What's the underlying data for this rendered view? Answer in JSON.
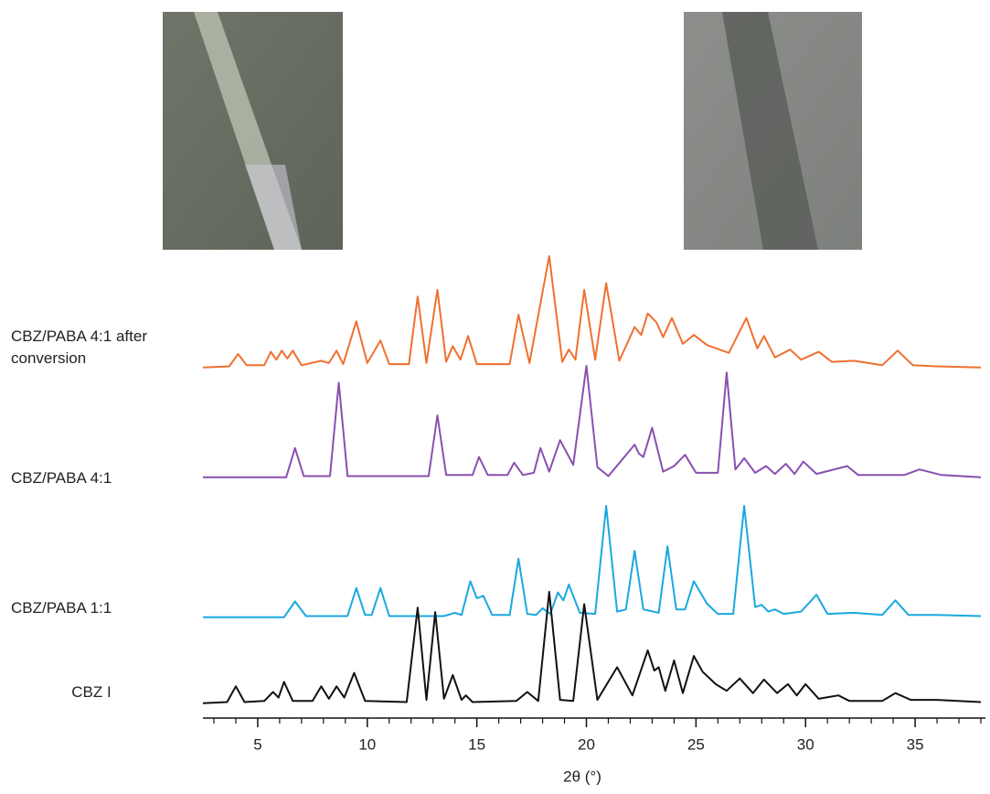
{
  "chart_data": {
    "type": "line",
    "x_label": "2θ (°)",
    "xlim": [
      2.5,
      38
    ],
    "xticks": [
      5,
      10,
      15,
      20,
      25,
      30,
      35
    ],
    "xticks_minor": [
      3,
      4,
      6,
      7,
      8,
      9,
      11,
      12,
      13,
      14,
      16,
      17,
      18,
      19,
      21,
      22,
      23,
      24,
      26,
      27,
      28,
      29,
      31,
      32,
      33,
      34,
      36,
      37,
      38
    ],
    "ylim": [
      0,
      100
    ],
    "series": [
      {
        "name": "CBZ/PABA 4:1 after conversion",
        "color": "#f07030",
        "x": [
          2.5,
          3.7,
          4.1,
          4.5,
          5.3,
          5.6,
          5.85,
          6.1,
          6.35,
          6.6,
          7.0,
          7.9,
          8.25,
          8.6,
          8.9,
          9.5,
          10.0,
          10.6,
          11.0,
          11.9,
          12.3,
          12.7,
          13.2,
          13.6,
          13.9,
          14.25,
          14.6,
          15.0,
          16.5,
          16.9,
          17.4,
          18.3,
          18.9,
          19.2,
          19.5,
          19.9,
          20.4,
          20.9,
          21.5,
          22.2,
          22.5,
          22.8,
          23.2,
          23.5,
          23.9,
          24.4,
          24.9,
          25.5,
          26.5,
          27.3,
          27.8,
          28.1,
          28.6,
          29.3,
          29.8,
          30.6,
          31.2,
          32.2,
          33.5,
          34.2,
          34.9,
          36,
          38
        ],
        "values": [
          1,
          2,
          13,
          3,
          3,
          15,
          8,
          16,
          9,
          16,
          3,
          7,
          5,
          16,
          4,
          42,
          5,
          25,
          4,
          4,
          64,
          5,
          70,
          6,
          20,
          8,
          29,
          4,
          4,
          48,
          5,
          100,
          6,
          17,
          8,
          70,
          8,
          76,
          7,
          37,
          30,
          49,
          41,
          28,
          45,
          22,
          30,
          21,
          14,
          45,
          18,
          29,
          10,
          17,
          8,
          15,
          6,
          7,
          3,
          16,
          3,
          2,
          1
        ]
      },
      {
        "name": "CBZ/PABA 4:1",
        "color": "#8a4fb0",
        "x": [
          2.5,
          6.3,
          6.7,
          7.1,
          8.3,
          8.7,
          9.1,
          11.5,
          12.8,
          13.2,
          13.6,
          14.8,
          15.1,
          15.5,
          16.4,
          16.7,
          17.1,
          17.6,
          17.9,
          18.3,
          18.8,
          19.4,
          20.0,
          20.5,
          21.0,
          22.2,
          22.4,
          22.6,
          23.0,
          23.5,
          24.0,
          24.5,
          25.0,
          26.0,
          26.4,
          26.8,
          27.2,
          27.7,
          28.2,
          28.6,
          29.1,
          29.5,
          29.9,
          30.5,
          31.9,
          32.4,
          34.5,
          35.2,
          36.2,
          38
        ],
        "values": [
          1,
          1,
          27,
          2,
          2,
          85,
          2,
          2,
          2,
          56,
          3,
          3,
          19,
          3,
          3,
          14,
          3,
          5,
          27,
          6,
          34,
          12,
          100,
          10,
          2,
          30,
          22,
          19,
          45,
          6,
          11,
          21,
          5,
          5,
          94,
          8,
          18,
          5,
          11,
          4,
          13,
          4,
          15,
          4,
          11,
          3,
          3,
          8,
          3,
          1
        ]
      },
      {
        "name": "CBZ/PABA 1:1",
        "color": "#1aa8e0",
        "x": [
          2.5,
          6.2,
          6.7,
          7.2,
          9.1,
          9.5,
          9.9,
          10.2,
          10.6,
          11.0,
          13.5,
          14.0,
          14.3,
          14.7,
          15.0,
          15.3,
          15.7,
          16.5,
          16.9,
          17.3,
          17.7,
          18.0,
          18.35,
          18.7,
          18.95,
          19.2,
          19.7,
          20.4,
          20.9,
          21.4,
          21.8,
          22.2,
          22.6,
          23.3,
          23.7,
          24.1,
          24.5,
          24.9,
          25.5,
          26.0,
          26.7,
          27.2,
          27.7,
          28.0,
          28.3,
          28.6,
          29.0,
          29.8,
          30.5,
          31.0,
          32.2,
          33.5,
          34.1,
          34.7,
          36,
          38
        ],
        "values": [
          1,
          1,
          15,
          2,
          2,
          27,
          3,
          3,
          27,
          2,
          2,
          5,
          3,
          33,
          18,
          20,
          3,
          3,
          53,
          4,
          3,
          9,
          4,
          23,
          16,
          30,
          5,
          4,
          100,
          6,
          8,
          60,
          8,
          5,
          64,
          8,
          8,
          33,
          13,
          4,
          4,
          100,
          10,
          12,
          6,
          8,
          4,
          6,
          21,
          4,
          5,
          3,
          16,
          3,
          3,
          2
        ]
      },
      {
        "name": "CBZ I",
        "color": "#111111",
        "x": [
          2.5,
          3.6,
          4.0,
          4.4,
          5.3,
          5.7,
          5.95,
          6.2,
          6.6,
          7.5,
          7.9,
          8.25,
          8.6,
          8.95,
          9.4,
          9.9,
          11.8,
          12.3,
          12.7,
          13.1,
          13.5,
          13.9,
          14.3,
          14.5,
          14.8,
          16.8,
          17.3,
          17.8,
          18.3,
          18.8,
          19.4,
          19.9,
          20.5,
          21.4,
          22.1,
          22.8,
          23.1,
          23.3,
          23.6,
          24.0,
          24.4,
          24.9,
          25.3,
          25.9,
          26.4,
          27.0,
          27.6,
          28.1,
          28.7,
          29.2,
          29.6,
          30.0,
          30.6,
          31.5,
          32,
          33.5,
          34.1,
          34.8,
          36,
          38
        ],
        "values": [
          1,
          2,
          16,
          2,
          3,
          11,
          6,
          20,
          3,
          3,
          16,
          5,
          16,
          6,
          28,
          3,
          2,
          86,
          4,
          82,
          5,
          26,
          4,
          8,
          2,
          3,
          11,
          3,
          100,
          4,
          3,
          89,
          4,
          33,
          8,
          48,
          30,
          33,
          12,
          39,
          10,
          43,
          29,
          18,
          12,
          23,
          10,
          22,
          10,
          18,
          8,
          18,
          5,
          8,
          3,
          3,
          10,
          4,
          4,
          2
        ]
      }
    ]
  }
}
